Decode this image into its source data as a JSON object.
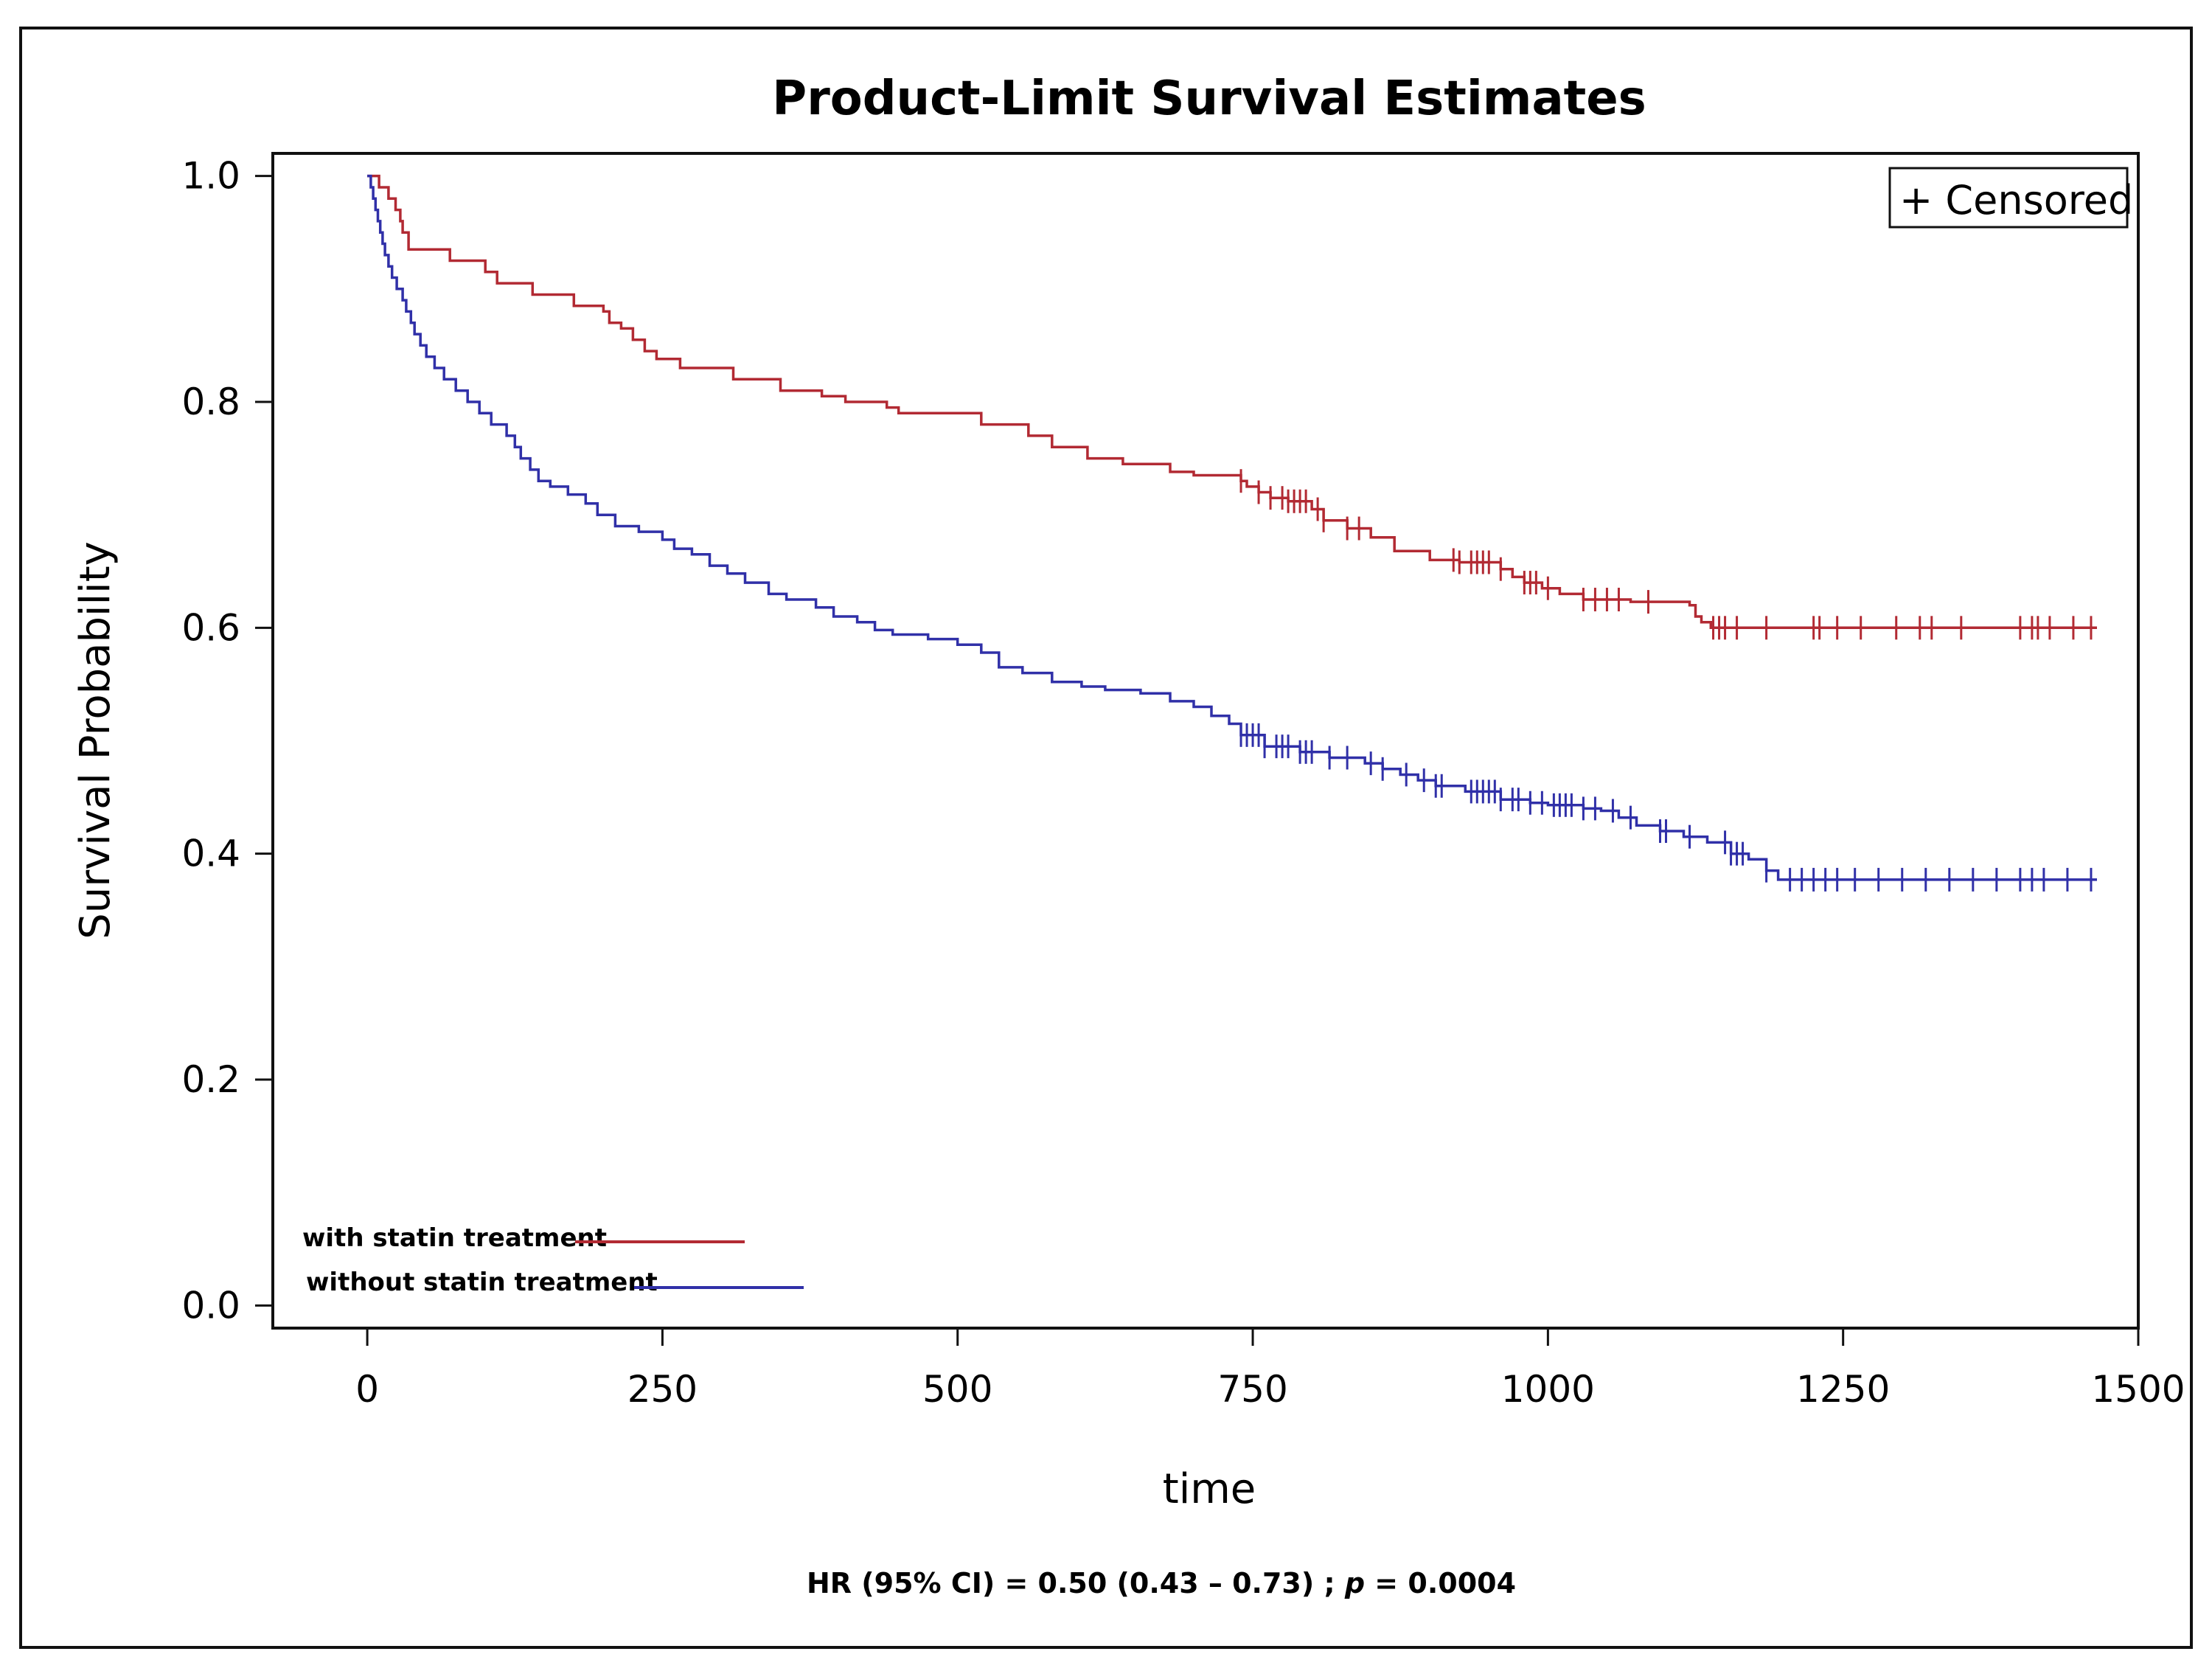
{
  "chart_data": {
    "type": "line",
    "subtype": "kaplan-meier step",
    "title": "Product-Limit Survival Estimates",
    "xlabel": "time",
    "ylabel": "Survival Probability",
    "xlim": [
      -80,
      1500
    ],
    "ylim": [
      -0.02,
      1.02
    ],
    "x_ticks": [
      "0",
      "250",
      "500",
      "750",
      "1000",
      "1250",
      "1500"
    ],
    "y_ticks": [
      "0.0",
      "0.2",
      "0.4",
      "0.6",
      "0.8",
      "1.0"
    ],
    "legend": {
      "censored_label": "+ Censored",
      "placement": "top-right"
    },
    "annotation": {
      "hr_prefix": "HR (95%  CI) = 0.50 (0.43 – 0.73) ; ",
      "p_symbol": "p",
      "p_value": " = 0.0004"
    },
    "series": [
      {
        "name": "with statin treatment",
        "color": "#b22a33",
        "steps": [
          [
            0,
            1.0
          ],
          [
            10,
            0.99
          ],
          [
            18,
            0.98
          ],
          [
            24,
            0.97
          ],
          [
            28,
            0.96
          ],
          [
            30,
            0.95
          ],
          [
            35,
            0.935
          ],
          [
            70,
            0.925
          ],
          [
            100,
            0.915
          ],
          [
            110,
            0.905
          ],
          [
            140,
            0.895
          ],
          [
            175,
            0.885
          ],
          [
            200,
            0.88
          ],
          [
            205,
            0.87
          ],
          [
            215,
            0.865
          ],
          [
            225,
            0.855
          ],
          [
            235,
            0.845
          ],
          [
            245,
            0.838
          ],
          [
            265,
            0.83
          ],
          [
            310,
            0.82
          ],
          [
            350,
            0.81
          ],
          [
            385,
            0.805
          ],
          [
            405,
            0.8
          ],
          [
            440,
            0.795
          ],
          [
            450,
            0.79
          ],
          [
            520,
            0.78
          ],
          [
            560,
            0.77
          ],
          [
            580,
            0.76
          ],
          [
            610,
            0.75
          ],
          [
            640,
            0.745
          ],
          [
            680,
            0.738
          ],
          [
            700,
            0.735
          ],
          [
            740,
            0.73
          ],
          [
            745,
            0.725
          ],
          [
            755,
            0.72
          ],
          [
            765,
            0.715
          ],
          [
            780,
            0.712
          ],
          [
            800,
            0.705
          ],
          [
            810,
            0.695
          ],
          [
            830,
            0.688
          ],
          [
            850,
            0.68
          ],
          [
            870,
            0.668
          ],
          [
            900,
            0.66
          ],
          [
            925,
            0.658
          ],
          [
            960,
            0.652
          ],
          [
            970,
            0.645
          ],
          [
            980,
            0.64
          ],
          [
            995,
            0.635
          ],
          [
            1010,
            0.63
          ],
          [
            1030,
            0.625
          ],
          [
            1070,
            0.623
          ],
          [
            1120,
            0.62
          ],
          [
            1125,
            0.61
          ],
          [
            1130,
            0.605
          ],
          [
            1138,
            0.6
          ],
          [
            1465,
            0.6
          ]
        ],
        "censored": [
          740,
          755,
          765,
          775,
          780,
          785,
          790,
          795,
          805,
          810,
          830,
          840,
          920,
          925,
          935,
          940,
          945,
          950,
          960,
          980,
          985,
          990,
          1000,
          1030,
          1040,
          1050,
          1060,
          1085,
          1140,
          1145,
          1150,
          1160,
          1185,
          1225,
          1230,
          1245,
          1265,
          1295,
          1315,
          1325,
          1350,
          1400,
          1410,
          1415,
          1425,
          1445,
          1460
        ]
      },
      {
        "name": "without statin treatment",
        "color": "#3030a8",
        "steps": [
          [
            0,
            1.0
          ],
          [
            3,
            0.99
          ],
          [
            5,
            0.98
          ],
          [
            7,
            0.97
          ],
          [
            9,
            0.96
          ],
          [
            11,
            0.95
          ],
          [
            13,
            0.94
          ],
          [
            15,
            0.93
          ],
          [
            18,
            0.92
          ],
          [
            21,
            0.91
          ],
          [
            25,
            0.9
          ],
          [
            30,
            0.89
          ],
          [
            33,
            0.88
          ],
          [
            37,
            0.87
          ],
          [
            40,
            0.86
          ],
          [
            45,
            0.85
          ],
          [
            50,
            0.84
          ],
          [
            57,
            0.83
          ],
          [
            65,
            0.82
          ],
          [
            75,
            0.81
          ],
          [
            85,
            0.8
          ],
          [
            95,
            0.79
          ],
          [
            105,
            0.78
          ],
          [
            118,
            0.77
          ],
          [
            125,
            0.76
          ],
          [
            130,
            0.75
          ],
          [
            138,
            0.74
          ],
          [
            145,
            0.73
          ],
          [
            155,
            0.725
          ],
          [
            170,
            0.718
          ],
          [
            185,
            0.71
          ],
          [
            195,
            0.7
          ],
          [
            210,
            0.69
          ],
          [
            230,
            0.685
          ],
          [
            250,
            0.678
          ],
          [
            260,
            0.67
          ],
          [
            275,
            0.665
          ],
          [
            290,
            0.655
          ],
          [
            305,
            0.648
          ],
          [
            320,
            0.64
          ],
          [
            340,
            0.63
          ],
          [
            355,
            0.625
          ],
          [
            380,
            0.618
          ],
          [
            395,
            0.61
          ],
          [
            415,
            0.605
          ],
          [
            430,
            0.598
          ],
          [
            445,
            0.594
          ],
          [
            475,
            0.59
          ],
          [
            500,
            0.585
          ],
          [
            520,
            0.578
          ],
          [
            535,
            0.565
          ],
          [
            555,
            0.56
          ],
          [
            580,
            0.552
          ],
          [
            605,
            0.548
          ],
          [
            625,
            0.545
          ],
          [
            655,
            0.542
          ],
          [
            680,
            0.535
          ],
          [
            700,
            0.53
          ],
          [
            715,
            0.522
          ],
          [
            730,
            0.515
          ],
          [
            740,
            0.505
          ],
          [
            760,
            0.495
          ],
          [
            790,
            0.49
          ],
          [
            815,
            0.485
          ],
          [
            845,
            0.48
          ],
          [
            860,
            0.475
          ],
          [
            875,
            0.47
          ],
          [
            890,
            0.465
          ],
          [
            905,
            0.46
          ],
          [
            930,
            0.455
          ],
          [
            960,
            0.448
          ],
          [
            985,
            0.445
          ],
          [
            1000,
            0.443
          ],
          [
            1030,
            0.44
          ],
          [
            1045,
            0.438
          ],
          [
            1060,
            0.432
          ],
          [
            1075,
            0.425
          ],
          [
            1095,
            0.42
          ],
          [
            1115,
            0.415
          ],
          [
            1135,
            0.41
          ],
          [
            1155,
            0.4
          ],
          [
            1170,
            0.395
          ],
          [
            1185,
            0.385
          ],
          [
            1195,
            0.377
          ],
          [
            1465,
            0.377
          ]
        ],
        "censored": [
          740,
          745,
          750,
          755,
          760,
          770,
          775,
          780,
          790,
          795,
          800,
          815,
          830,
          850,
          860,
          880,
          895,
          905,
          910,
          935,
          940,
          945,
          950,
          955,
          960,
          970,
          975,
          985,
          995,
          1005,
          1010,
          1015,
          1020,
          1030,
          1040,
          1055,
          1070,
          1095,
          1100,
          1120,
          1150,
          1155,
          1160,
          1165,
          1185,
          1205,
          1215,
          1225,
          1235,
          1245,
          1260,
          1280,
          1300,
          1320,
          1340,
          1360,
          1380,
          1400,
          1410,
          1420,
          1440,
          1460
        ]
      }
    ]
  }
}
